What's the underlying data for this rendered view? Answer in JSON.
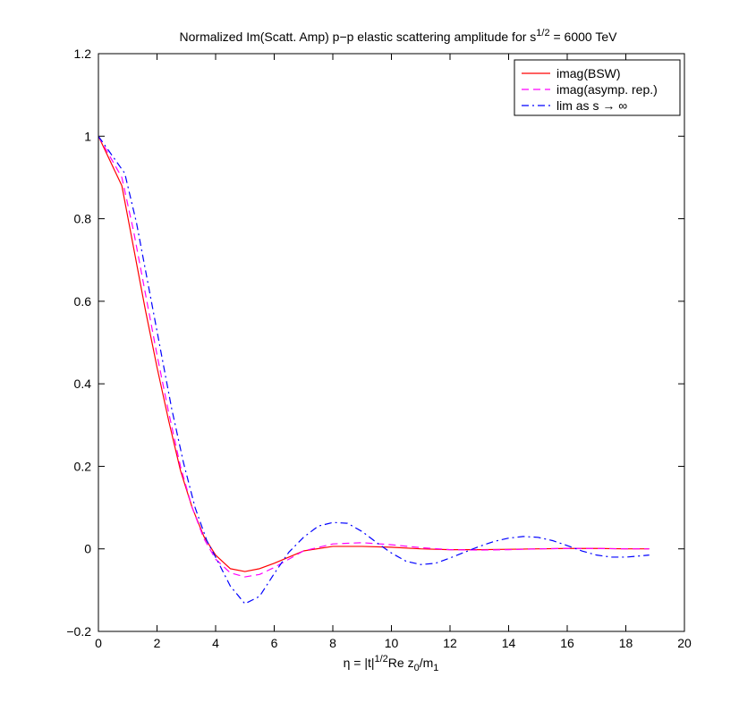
{
  "chart_data": {
    "type": "line",
    "title": {
      "prefix": "Normalized Im(Scatt. Amp) p−p elastic scattering amplitude for s",
      "sup": "1/2",
      "suffix": " = 6000 TeV"
    },
    "xlabel": {
      "part1": "η = |t|",
      "sup": "1/2",
      "part2": "Re z",
      "sub1": "0",
      "part3": "/m",
      "sub2": "1"
    },
    "ylabel": "",
    "xlim": [
      0,
      20
    ],
    "ylim": [
      -0.2,
      1.2
    ],
    "xticks": [
      0,
      2,
      4,
      6,
      8,
      10,
      12,
      14,
      16,
      18,
      20
    ],
    "yticks": [
      -0.2,
      0,
      0.2,
      0.4,
      0.6,
      0.8,
      1,
      1.2
    ],
    "xtick_labels": [
      "0",
      "2",
      "4",
      "6",
      "8",
      "10",
      "12",
      "14",
      "16",
      "18",
      "20"
    ],
    "ytick_labels": [
      "−0.2",
      "0",
      "0.2",
      "0.4",
      "0.6",
      "0.8",
      "1",
      "1.2"
    ],
    "grid": false,
    "legend_position": "top-right",
    "series": [
      {
        "name": "imag(BSW)",
        "color": "#ff0000",
        "dash": "solid",
        "x": [
          0,
          0.8,
          1.2,
          1.6,
          2.0,
          2.4,
          2.8,
          3.2,
          3.6,
          4.0,
          4.5,
          5.0,
          5.5,
          6.0,
          7.0,
          8.0,
          9.0,
          10.0,
          11.0,
          12.0,
          13.0,
          14.0,
          15.0,
          16.0,
          17.0,
          18.0,
          18.8
        ],
        "y": [
          1.0,
          0.88,
          0.73,
          0.58,
          0.44,
          0.31,
          0.19,
          0.1,
          0.03,
          -0.015,
          -0.048,
          -0.055,
          -0.048,
          -0.035,
          -0.005,
          0.006,
          0.006,
          0.004,
          0.0,
          -0.002,
          -0.002,
          -0.001,
          0.0,
          0.001,
          0.001,
          0.0,
          0.0
        ]
      },
      {
        "name": "imag(asymp. rep.)",
        "color": "#ff00ff",
        "dash": "dashed",
        "x": [
          0,
          0.8,
          1.2,
          1.6,
          2.0,
          2.4,
          2.8,
          3.2,
          3.6,
          4.0,
          4.5,
          5.0,
          5.5,
          6.0,
          7.0,
          8.0,
          9.0,
          10.0,
          11.0,
          12.0,
          13.0,
          14.0,
          15.0,
          16.0,
          17.0,
          18.0,
          18.8
        ],
        "y": [
          1.0,
          0.9,
          0.77,
          0.62,
          0.47,
          0.33,
          0.2,
          0.1,
          0.025,
          -0.025,
          -0.058,
          -0.068,
          -0.062,
          -0.045,
          -0.005,
          0.012,
          0.015,
          0.01,
          0.003,
          -0.002,
          -0.003,
          -0.002,
          0.0,
          0.001,
          0.001,
          0.0,
          0.0
        ]
      },
      {
        "name": "lim as s → ∞",
        "color": "#0000ff",
        "dash": "dashdot",
        "x": [
          0,
          0.9,
          1.3,
          1.7,
          2.1,
          2.5,
          2.9,
          3.3,
          3.7,
          4.0,
          4.5,
          5.0,
          5.5,
          6.0,
          6.5,
          7.0,
          7.5,
          8.0,
          8.5,
          9.0,
          9.5,
          10.0,
          10.5,
          11.0,
          11.5,
          12.0,
          12.5,
          13.0,
          13.5,
          14.0,
          14.5,
          15.0,
          15.5,
          16.0,
          16.5,
          17.0,
          17.5,
          18.0,
          18.5,
          18.8
        ],
        "y": [
          1.0,
          0.91,
          0.79,
          0.64,
          0.49,
          0.34,
          0.21,
          0.1,
          0.02,
          -0.02,
          -0.09,
          -0.133,
          -0.115,
          -0.06,
          -0.008,
          0.028,
          0.055,
          0.064,
          0.062,
          0.042,
          0.015,
          -0.01,
          -0.03,
          -0.038,
          -0.035,
          -0.022,
          -0.008,
          0.006,
          0.018,
          0.026,
          0.03,
          0.028,
          0.02,
          0.008,
          -0.005,
          -0.015,
          -0.02,
          -0.02,
          -0.017,
          -0.015
        ]
      }
    ]
  }
}
